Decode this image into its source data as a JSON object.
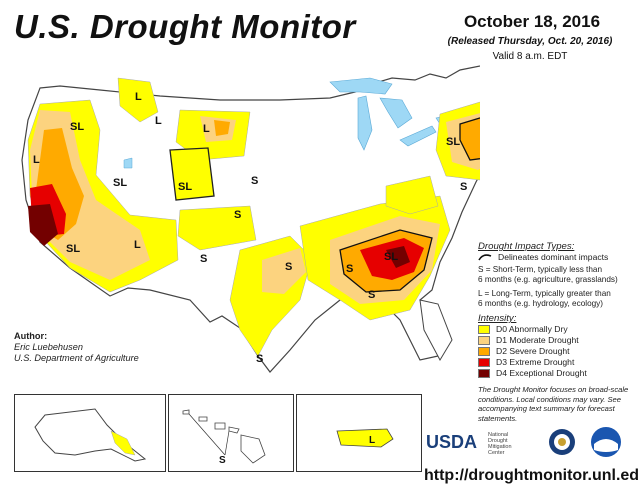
{
  "header": {
    "title": "U.S. Drought Monitor",
    "date": "October 18, 2016",
    "released": "(Released Thursday, Oct. 20, 2016)",
    "valid": "Valid 8 a.m. EDT"
  },
  "map_labels": {
    "sl": "SL",
    "s": "S",
    "l": "L"
  },
  "legend": {
    "impact_header": "Drought Impact Types:",
    "delineates": "Delineates dominant impacts",
    "short_term_line1": "S = Short-Term, typically less than",
    "short_term_line2": "6 months (e.g. agriculture, grasslands)",
    "long_term_line1": "L = Long-Term, typically greater than",
    "long_term_line2": "6 months (e.g. hydrology, ecology)",
    "intensity_header": "Intensity:",
    "categories": [
      {
        "label": "D0 Abnormally Dry",
        "color": "#ffff00"
      },
      {
        "label": "D1 Moderate Drought",
        "color": "#fcd37f"
      },
      {
        "label": "D2 Severe Drought",
        "color": "#ffaa00"
      },
      {
        "label": "D3 Extreme Drought",
        "color": "#e60000"
      },
      {
        "label": "D4 Exceptional Drought",
        "color": "#730000"
      }
    ],
    "footnote": "The Drought Monitor focuses on broad-scale conditions. Local conditions may vary. See accompanying text summary for forecast statements."
  },
  "author": {
    "heading": "Author:",
    "name": "Eric Luebehusen",
    "org": "U.S. Department of Agriculture"
  },
  "logos": {
    "usda": "USDA",
    "ndmc_line1": "National",
    "ndmc_line2": "Drought",
    "ndmc_line3": "Mitigation",
    "ndmc_line4": "Center"
  },
  "url": "http://droughtmonitor.unl.edu/",
  "colors": {
    "water": "#9ed8f5",
    "border": "#444444",
    "d0": "#ffff00",
    "d1": "#fcd37f",
    "d2": "#ffaa00",
    "d3": "#e60000",
    "d4": "#730000"
  }
}
